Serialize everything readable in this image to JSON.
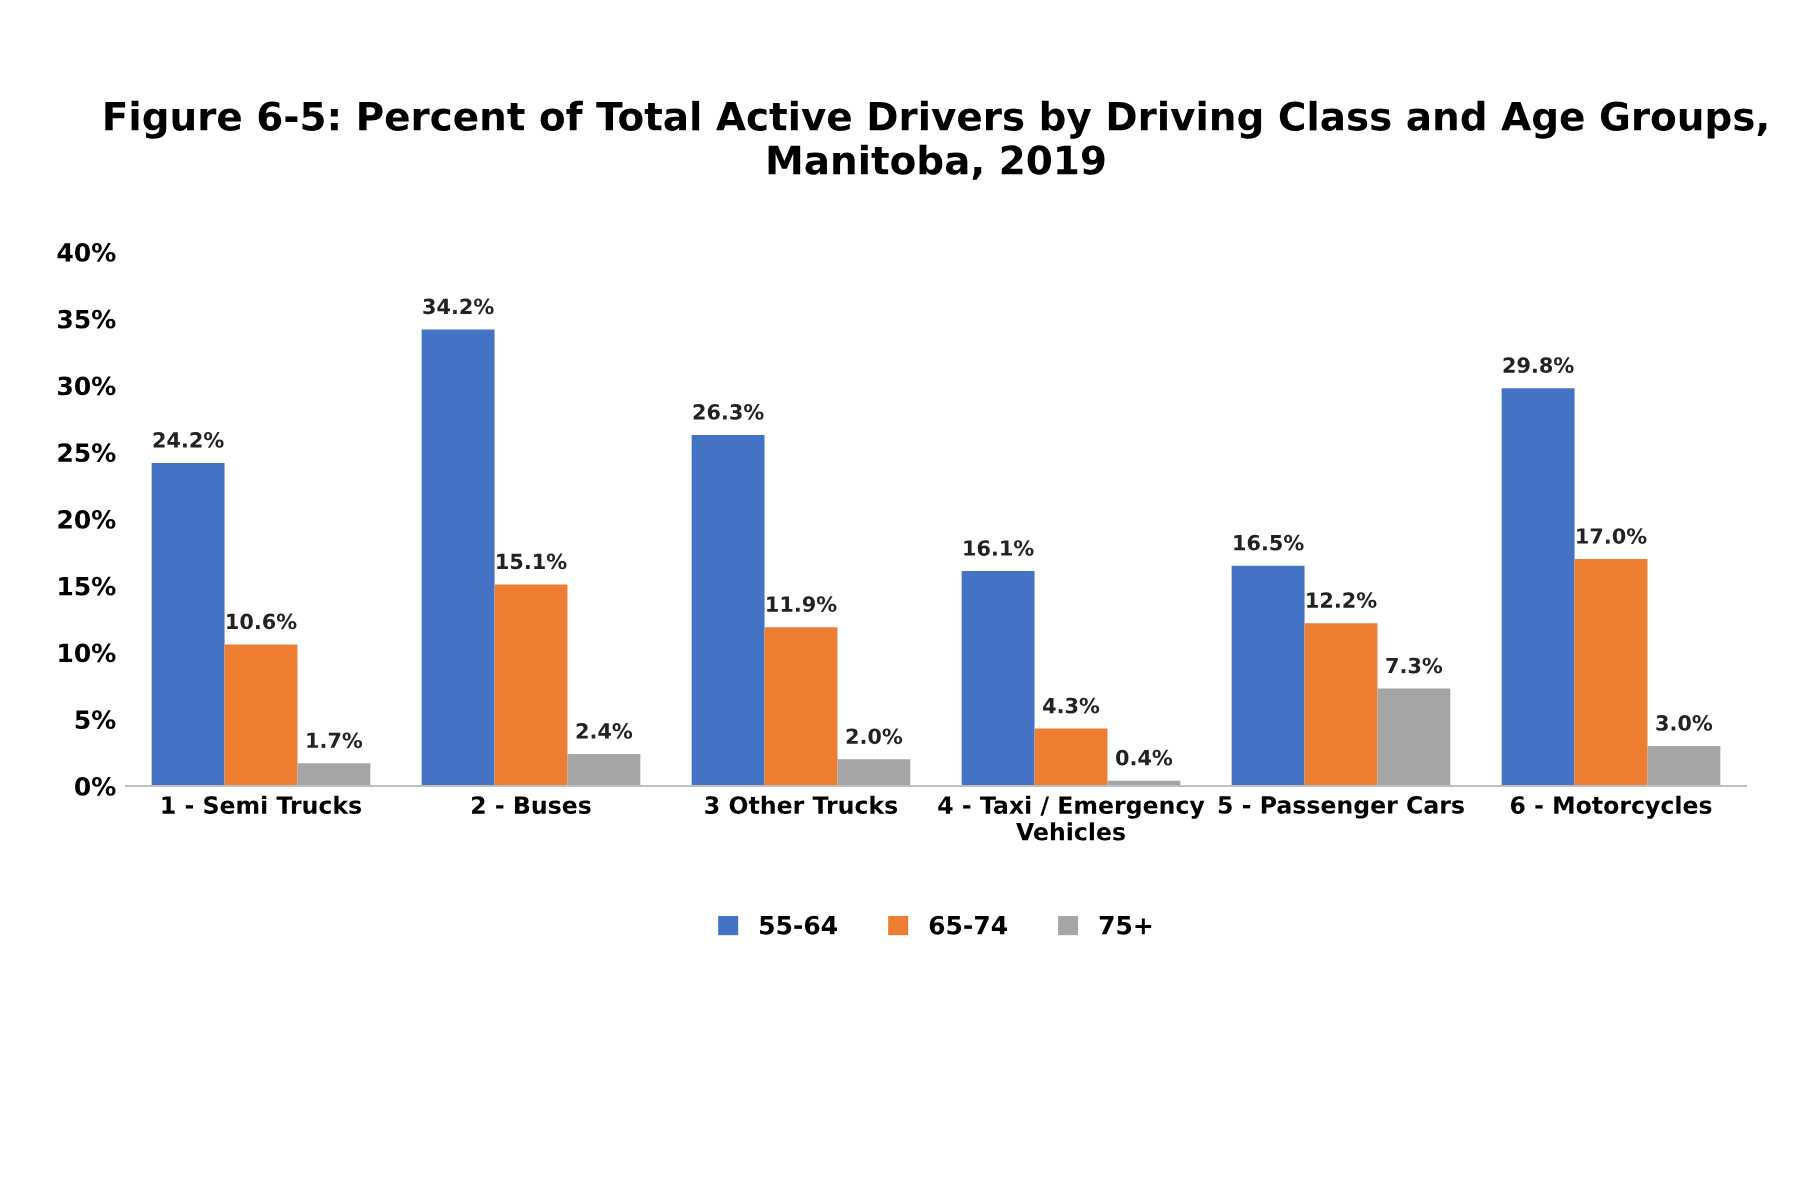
{
  "chart_data": {
    "type": "bar",
    "title": "Figure 6-5: Percent of Total Active Drivers by Driving Class and Age Groups,\nManitoba, 2019",
    "categories": [
      "1 - Semi Trucks",
      "2 - Buses",
      "3 Other Trucks",
      "4 - Taxi / Emergency\nVehicles",
      "5 - Passenger Cars",
      "6 - Motorcycles"
    ],
    "series": [
      {
        "name": "55-64",
        "color": "#4472c4",
        "values": [
          24.2,
          34.2,
          26.3,
          16.1,
          16.5,
          29.8
        ],
        "value_labels": [
          "24.2%",
          "34.2%",
          "26.3%",
          "16.1%",
          "16.5%",
          "29.8%"
        ]
      },
      {
        "name": "65-74",
        "color": "#ed7d31",
        "values": [
          10.6,
          15.1,
          11.9,
          4.3,
          12.2,
          17.0
        ],
        "value_labels": [
          "10.6%",
          "15.1%",
          "11.9%",
          "4.3%",
          "12.2%",
          "17.0%"
        ]
      },
      {
        "name": "75+",
        "color": "#a5a5a5",
        "values": [
          1.7,
          2.4,
          2.0,
          0.4,
          7.3,
          3.0
        ],
        "value_labels": [
          "1.7%",
          "2.4%",
          "2.0%",
          "0.4%",
          "7.3%",
          "3.0%"
        ]
      }
    ],
    "ylim": [
      0,
      40
    ],
    "yticks": [
      {
        "value": 0,
        "label": "0%"
      },
      {
        "value": 5,
        "label": "5%"
      },
      {
        "value": 10,
        "label": "10%"
      },
      {
        "value": 15,
        "label": "15%"
      },
      {
        "value": 20,
        "label": "20%"
      },
      {
        "value": 25,
        "label": "25%"
      },
      {
        "value": 30,
        "label": "30%"
      },
      {
        "value": 35,
        "label": "35%"
      },
      {
        "value": 40,
        "label": "40%"
      }
    ],
    "grid": false,
    "legend": "bottom"
  }
}
